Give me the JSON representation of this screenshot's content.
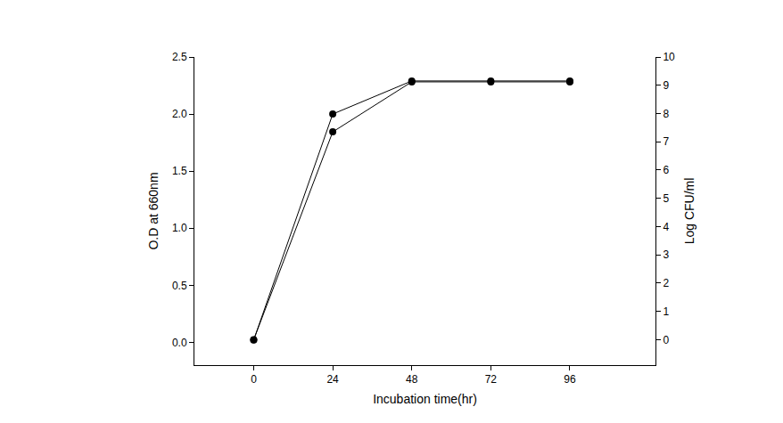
{
  "chart_data": {
    "type": "line",
    "x_label": "Incubation time(hr)",
    "y_label": "O.D at 660nm",
    "y2_label": "Log CFU/ml",
    "x": [
      0,
      24,
      48,
      72,
      96
    ],
    "series": [
      {
        "color": "#000000",
        "marker": "circle",
        "line_style": "solid",
        "values": [
          0.02,
          2.0,
          2.29,
          2.29,
          2.29
        ]
      },
      {
        "color": "#000000",
        "marker": "circle",
        "line_style": "solid",
        "axis": "y2",
        "values": [
          0.0,
          7.35,
          9.12,
          9.12,
          9.12
        ]
      }
    ],
    "xlim": [
      -18,
      122
    ],
    "xticks": [
      0,
      24,
      48,
      72,
      96
    ],
    "ylim": [
      -0.2,
      2.5
    ],
    "yticks": [
      {
        "value": 0,
        "label": "0.0"
      },
      {
        "value": 0.5,
        "label": "0.5"
      },
      {
        "value": 1,
        "label": "1.0"
      },
      {
        "value": 1.5,
        "label": "1.5"
      },
      {
        "value": 2,
        "label": "2.0"
      },
      {
        "value": 2.5,
        "label": "2.5"
      }
    ],
    "y2lim": [
      -0.9,
      10
    ],
    "y2ticks": [
      0,
      1,
      2,
      3,
      4,
      5,
      6,
      7,
      8,
      9,
      10
    ],
    "grid": false
  }
}
